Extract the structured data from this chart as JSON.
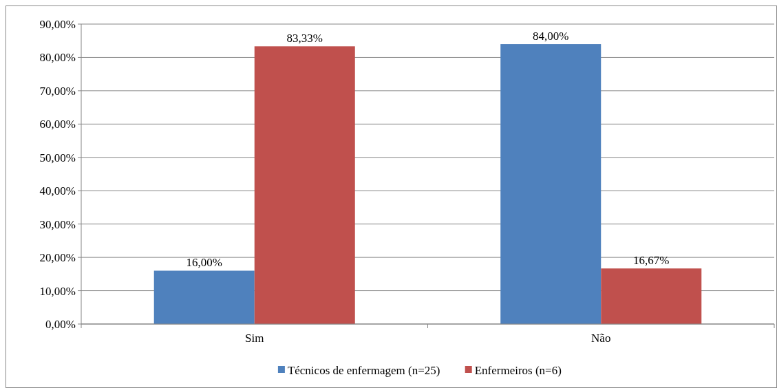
{
  "chart_data": {
    "type": "bar",
    "categories": [
      "Sim",
      "Não"
    ],
    "series": [
      {
        "name": "Técnicos de enfermagem (n=25)",
        "color": "#4f81bd",
        "values": [
          16,
          84
        ],
        "value_labels": [
          "16,00%",
          "84,00%"
        ]
      },
      {
        "name": "Enfermeiros (n=6)",
        "color": "#c0504d",
        "values": [
          83.33,
          16.67
        ],
        "value_labels": [
          "83,33%",
          "16,67%"
        ]
      }
    ],
    "ylim": [
      0,
      90
    ],
    "yticks": [
      {
        "value": 0,
        "label": "0,00%"
      },
      {
        "value": 10,
        "label": "10,00%"
      },
      {
        "value": 20,
        "label": "20,00%"
      },
      {
        "value": 30,
        "label": "30,00%"
      },
      {
        "value": 40,
        "label": "40,00%"
      },
      {
        "value": 50,
        "label": "50,00%"
      },
      {
        "value": 60,
        "label": "60,00%"
      },
      {
        "value": 70,
        "label": "70,00%"
      },
      {
        "value": 80,
        "label": "80,00%"
      },
      {
        "value": 90,
        "label": "90,00%"
      }
    ],
    "grid": "y",
    "legend": "bottom"
  }
}
